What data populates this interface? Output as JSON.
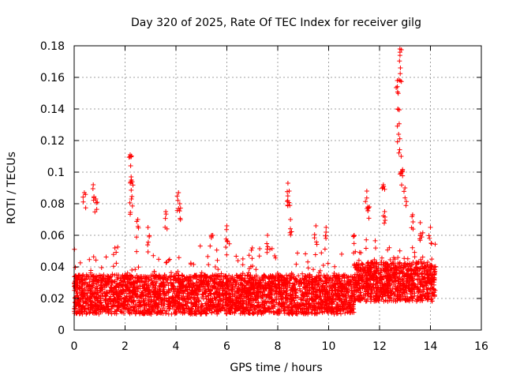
{
  "chart_data": {
    "type": "scatter",
    "title": "Day 320 of 2025, Rate Of TEC Index for receiver gilg",
    "xlabel": "GPS time / hours",
    "ylabel": "ROTI / TECUs",
    "xlim": [
      0,
      16
    ],
    "ylim": [
      0,
      0.18
    ],
    "x_ticks": [
      0,
      2,
      4,
      6,
      8,
      10,
      12,
      14,
      16
    ],
    "y_ticks": [
      0,
      0.02,
      0.04,
      0.06,
      0.08,
      0.1,
      0.12,
      0.14,
      0.16,
      0.18
    ],
    "grid": true,
    "marker": "+",
    "marker_color": "#ff0000",
    "data_extent_hours": [
      0,
      14.2
    ],
    "series": [
      {
        "name": "ROTI",
        "typical_range": [
          0.01,
          0.035
        ],
        "peaks": [
          {
            "x": 0.4,
            "y": 0.087
          },
          {
            "x": 0.75,
            "y": 0.092
          },
          {
            "x": 0.85,
            "y": 0.083
          },
          {
            "x": 1.6,
            "y": 0.052
          },
          {
            "x": 2.2,
            "y": 0.111
          },
          {
            "x": 2.22,
            "y": 0.104
          },
          {
            "x": 2.25,
            "y": 0.095
          },
          {
            "x": 2.25,
            "y": 0.083
          },
          {
            "x": 2.5,
            "y": 0.07
          },
          {
            "x": 2.9,
            "y": 0.065
          },
          {
            "x": 3.6,
            "y": 0.075
          },
          {
            "x": 4.1,
            "y": 0.087
          },
          {
            "x": 4.15,
            "y": 0.08
          },
          {
            "x": 5.4,
            "y": 0.06
          },
          {
            "x": 6.0,
            "y": 0.066
          },
          {
            "x": 7.0,
            "y": 0.052
          },
          {
            "x": 7.6,
            "y": 0.06
          },
          {
            "x": 8.4,
            "y": 0.093
          },
          {
            "x": 8.45,
            "y": 0.088
          },
          {
            "x": 8.5,
            "y": 0.07
          },
          {
            "x": 9.5,
            "y": 0.066
          },
          {
            "x": 9.9,
            "y": 0.065
          },
          {
            "x": 11.0,
            "y": 0.06
          },
          {
            "x": 11.5,
            "y": 0.088
          },
          {
            "x": 11.6,
            "y": 0.078
          },
          {
            "x": 12.15,
            "y": 0.092
          },
          {
            "x": 12.2,
            "y": 0.075
          },
          {
            "x": 12.7,
            "y": 0.158
          },
          {
            "x": 12.72,
            "y": 0.14
          },
          {
            "x": 12.75,
            "y": 0.124
          },
          {
            "x": 12.8,
            "y": 0.178
          },
          {
            "x": 12.82,
            "y": 0.166
          },
          {
            "x": 12.85,
            "y": 0.11
          },
          {
            "x": 12.9,
            "y": 0.101
          },
          {
            "x": 13.0,
            "y": 0.09
          },
          {
            "x": 13.3,
            "y": 0.073
          },
          {
            "x": 13.6,
            "y": 0.068
          },
          {
            "x": 14.0,
            "y": 0.065
          }
        ]
      }
    ]
  }
}
